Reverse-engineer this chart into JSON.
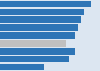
{
  "values": [
    29,
    27,
    26,
    25,
    24,
    21,
    24,
    22,
    14
  ],
  "bar_colors": [
    "#2e75b6",
    "#2e75b6",
    "#2e75b6",
    "#2e75b6",
    "#2e75b6",
    "#c0c0c0",
    "#2e75b6",
    "#2e75b6",
    "#2e75b6"
  ],
  "background_color": "#dce6f1",
  "xlim": [
    0,
    32
  ],
  "bar_height": 0.82
}
